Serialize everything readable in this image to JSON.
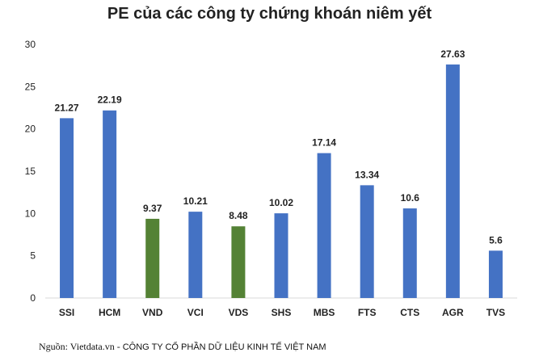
{
  "chart_data": {
    "type": "bar",
    "title": "PE của các công ty chứng khoán niêm yết",
    "categories": [
      "SSI",
      "HCM",
      "VND",
      "VCI",
      "VDS",
      "SHS",
      "MBS",
      "FTS",
      "CTS",
      "AGR",
      "TVS"
    ],
    "values": [
      21.27,
      22.19,
      9.37,
      10.21,
      8.48,
      10.02,
      17.14,
      13.34,
      10.6,
      27.63,
      5.6
    ],
    "value_labels": [
      "21.27",
      "22.19",
      "9.37",
      "10.21",
      "8.48",
      "10.02",
      "17.14",
      "13.34",
      "10.6",
      "27.63",
      "5.6"
    ],
    "colors": [
      "#4472c4",
      "#4472c4",
      "#548235",
      "#4472c4",
      "#548235",
      "#4472c4",
      "#4472c4",
      "#4472c4",
      "#4472c4",
      "#4472c4",
      "#4472c4"
    ],
    "ylim": [
      0,
      30
    ],
    "yticks": [
      0,
      5,
      10,
      15,
      20,
      25,
      30
    ],
    "grid": false,
    "xlabel": "",
    "ylabel": ""
  },
  "source": {
    "prefix": "Nguồn: Vietdata.vn - ",
    "org": "CÔNG TY CỔ PHẦN DỮ LIỆU KINH TẾ VIỆT NAM"
  }
}
